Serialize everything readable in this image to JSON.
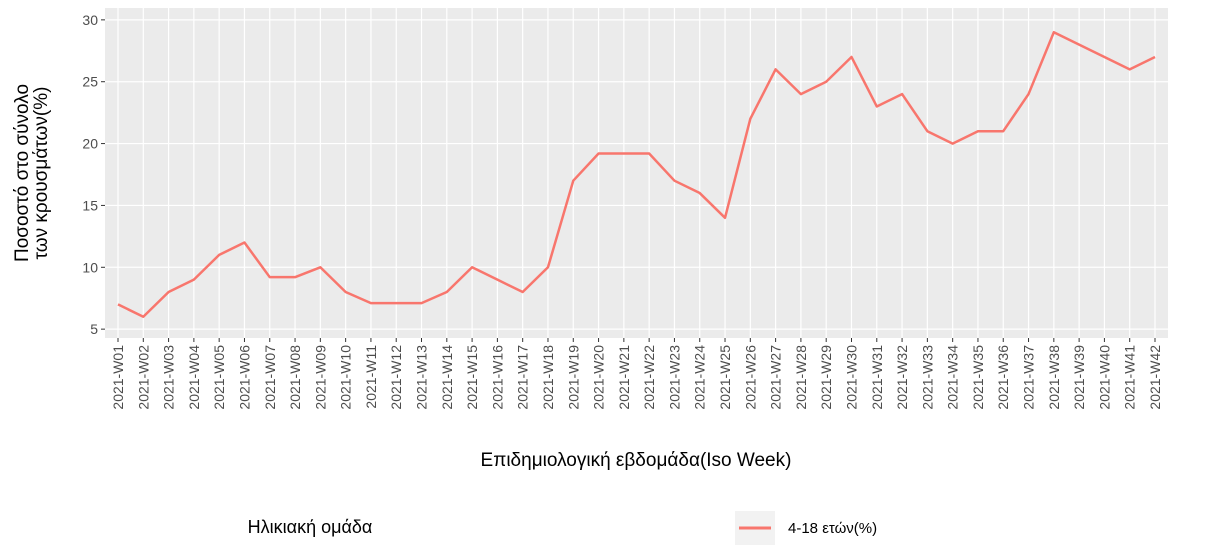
{
  "chart_data": {
    "type": "line",
    "ylabel": [
      "Ποσοστό στο σύνολο",
      "των κρουσμάτων(%)"
    ],
    "xlabel": "Επιδημιολογική εβδομάδα(Iso Week)",
    "legend_title": "Ηλικιακή ομάδα",
    "categories": [
      "2021-W01",
      "2021-W02",
      "2021-W03",
      "2021-W04",
      "2021-W05",
      "2021-W06",
      "2021-W07",
      "2021-W08",
      "2021-W09",
      "2021-W10",
      "2021-W11",
      "2021-W12",
      "2021-W13",
      "2021-W14",
      "2021-W15",
      "2021-W16",
      "2021-W17",
      "2021-W18",
      "2021-W19",
      "2021-W20",
      "2021-W21",
      "2021-W22",
      "2021-W23",
      "2021-W24",
      "2021-W25",
      "2021-W26",
      "2021-W27",
      "2021-W28",
      "2021-W29",
      "2021-W30",
      "2021-W31",
      "2021-W32",
      "2021-W33",
      "2021-W34",
      "2021-W35",
      "2021-W36",
      "2021-W37",
      "2021-W38",
      "2021-W39",
      "2021-W40",
      "2021-W41",
      "2021-W42"
    ],
    "series": [
      {
        "name": "4-18 ετών(%)",
        "color": "#f8766d",
        "values": [
          7,
          6,
          8,
          9,
          11,
          12,
          9.2,
          9.2,
          10,
          8,
          7.1,
          7.1,
          7.1,
          8,
          10,
          9,
          8,
          10,
          17,
          19.2,
          19.2,
          19.2,
          17,
          16,
          14,
          22,
          26,
          24,
          25,
          27,
          23,
          24,
          21,
          20,
          21,
          21,
          24,
          29,
          28,
          27,
          26,
          27
        ]
      }
    ],
    "ylim": [
      4.85,
      30.15
    ],
    "yticks": [
      5,
      10,
      15,
      20,
      25,
      30
    ],
    "grid": true
  }
}
